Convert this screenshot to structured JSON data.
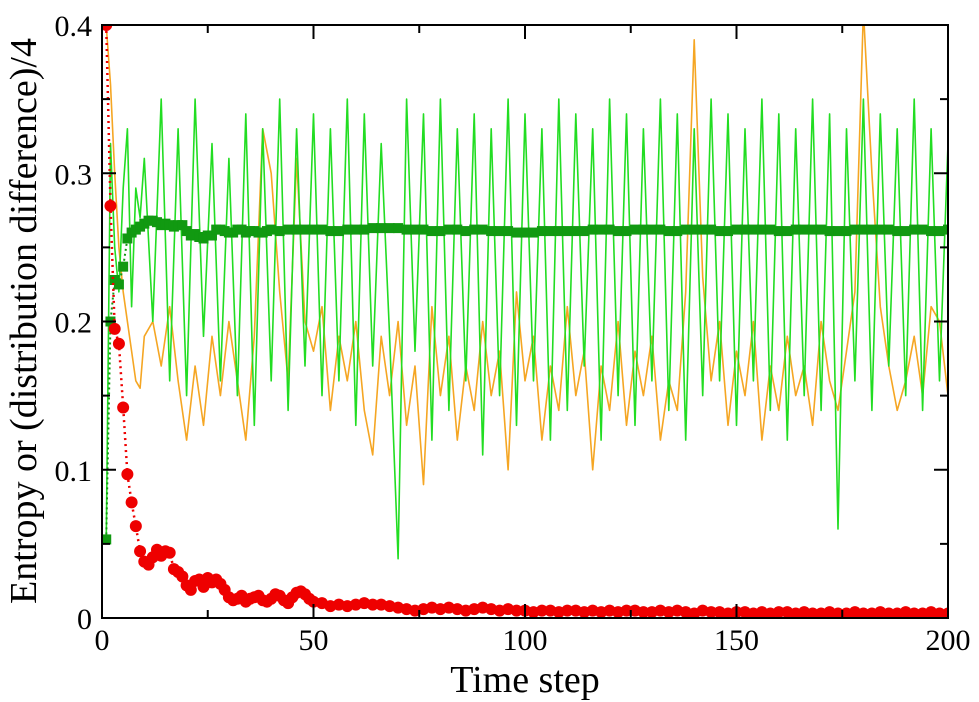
{
  "chart_data": {
    "type": "line",
    "title": "",
    "xlabel": "Time step",
    "ylabel": "Entropy or (distribution difference)/4",
    "xlim": [
      0,
      200
    ],
    "ylim": [
      0,
      0.4
    ],
    "xticks": [
      0,
      50,
      100,
      150,
      200
    ],
    "xtick_labels": [
      "0",
      "50",
      "100",
      "150",
      "200"
    ],
    "yticks": [
      0,
      0.1,
      0.2,
      0.3,
      0.4
    ],
    "ytick_labels": [
      "0",
      "0.1",
      "0.2",
      "0.3",
      "0.4"
    ],
    "grid": false,
    "legend": "none",
    "series": [
      {
        "name": "orange fluctuating line",
        "style": "line",
        "color": "#f5a623",
        "x": [
          1,
          2,
          3,
          4,
          5,
          6,
          7,
          8,
          9,
          10,
          12,
          14,
          16,
          18,
          20,
          22,
          24,
          26,
          28,
          30,
          32,
          34,
          36,
          38,
          40,
          42,
          44,
          46,
          48,
          50,
          52,
          54,
          56,
          58,
          60,
          62,
          64,
          66,
          68,
          70,
          72,
          74,
          76,
          78,
          80,
          82,
          84,
          86,
          88,
          90,
          92,
          94,
          96,
          98,
          100,
          102,
          104,
          106,
          108,
          110,
          112,
          114,
          116,
          118,
          120,
          122,
          124,
          126,
          128,
          130,
          132,
          134,
          136,
          138,
          140,
          142,
          144,
          146,
          148,
          150,
          152,
          154,
          156,
          158,
          160,
          162,
          164,
          166,
          168,
          170,
          172,
          174,
          176,
          178,
          180,
          182,
          184,
          186,
          188,
          190,
          192,
          194,
          196,
          198,
          200
        ],
        "values": [
          0.4,
          0.36,
          0.3,
          0.25,
          0.22,
          0.2,
          0.18,
          0.16,
          0.155,
          0.19,
          0.2,
          0.17,
          0.21,
          0.16,
          0.12,
          0.17,
          0.13,
          0.19,
          0.15,
          0.2,
          0.16,
          0.12,
          0.19,
          0.33,
          0.3,
          0.22,
          0.16,
          0.31,
          0.2,
          0.18,
          0.21,
          0.14,
          0.19,
          0.16,
          0.2,
          0.14,
          0.11,
          0.19,
          0.15,
          0.2,
          0.13,
          0.17,
          0.09,
          0.21,
          0.15,
          0.19,
          0.12,
          0.17,
          0.14,
          0.2,
          0.15,
          0.18,
          0.1,
          0.22,
          0.16,
          0.19,
          0.12,
          0.17,
          0.14,
          0.21,
          0.15,
          0.18,
          0.1,
          0.17,
          0.14,
          0.2,
          0.13,
          0.18,
          0.15,
          0.19,
          0.12,
          0.16,
          0.14,
          0.22,
          0.39,
          0.23,
          0.16,
          0.2,
          0.13,
          0.18,
          0.15,
          0.2,
          0.12,
          0.17,
          0.14,
          0.19,
          0.15,
          0.17,
          0.13,
          0.2,
          0.16,
          0.14,
          0.18,
          0.22,
          0.41,
          0.3,
          0.21,
          0.17,
          0.14,
          0.16,
          0.19,
          0.15,
          0.21,
          0.2,
          0.15
        ]
      },
      {
        "name": "green oscillating line",
        "style": "line",
        "color": "#22dd22",
        "x": [
          1,
          2,
          3,
          4,
          5,
          6,
          7,
          8,
          9,
          10,
          12,
          14,
          16,
          18,
          20,
          22,
          24,
          26,
          28,
          30,
          32,
          34,
          36,
          38,
          40,
          42,
          44,
          46,
          48,
          50,
          52,
          54,
          56,
          58,
          60,
          62,
          64,
          66,
          68,
          70,
          72,
          74,
          76,
          78,
          80,
          82,
          84,
          86,
          88,
          90,
          92,
          94,
          96,
          98,
          100,
          102,
          104,
          106,
          108,
          110,
          112,
          114,
          116,
          118,
          120,
          122,
          124,
          126,
          128,
          130,
          132,
          134,
          136,
          138,
          140,
          142,
          144,
          146,
          148,
          150,
          152,
          154,
          156,
          158,
          160,
          162,
          164,
          166,
          168,
          170,
          172,
          174,
          176,
          178,
          180,
          182,
          184,
          186,
          188,
          190,
          192,
          194,
          196,
          198,
          200
        ],
        "values": [
          0.05,
          0.32,
          0.25,
          0.22,
          0.29,
          0.33,
          0.21,
          0.29,
          0.27,
          0.31,
          0.2,
          0.35,
          0.16,
          0.33,
          0.15,
          0.35,
          0.19,
          0.32,
          0.16,
          0.31,
          0.15,
          0.34,
          0.13,
          0.33,
          0.16,
          0.35,
          0.14,
          0.33,
          0.17,
          0.34,
          0.15,
          0.33,
          0.16,
          0.35,
          0.13,
          0.34,
          0.17,
          0.32,
          0.19,
          0.04,
          0.35,
          0.18,
          0.34,
          0.12,
          0.35,
          0.14,
          0.33,
          0.16,
          0.34,
          0.11,
          0.33,
          0.15,
          0.35,
          0.13,
          0.34,
          0.16,
          0.33,
          0.12,
          0.35,
          0.14,
          0.34,
          0.17,
          0.33,
          0.12,
          0.35,
          0.15,
          0.34,
          0.13,
          0.33,
          0.16,
          0.35,
          0.14,
          0.34,
          0.12,
          0.33,
          0.15,
          0.35,
          0.16,
          0.34,
          0.13,
          0.33,
          0.16,
          0.35,
          0.14,
          0.34,
          0.12,
          0.33,
          0.15,
          0.35,
          0.14,
          0.34,
          0.06,
          0.33,
          0.16,
          0.35,
          0.14,
          0.34,
          0.17,
          0.33,
          0.15,
          0.35,
          0.14,
          0.33,
          0.16,
          0.32
        ]
      },
      {
        "name": "dark green squares",
        "style": "markers-square",
        "color": "#119911",
        "x": [
          1,
          2,
          3,
          4,
          5,
          6,
          7,
          8,
          9,
          10,
          11,
          12,
          13,
          14,
          15,
          16,
          17,
          18,
          19,
          20,
          21,
          22,
          23,
          24,
          25,
          26,
          27,
          28,
          29,
          30,
          31,
          32,
          33,
          34,
          35,
          36,
          37,
          38,
          39,
          40,
          42,
          44,
          46,
          48,
          50,
          52,
          54,
          56,
          58,
          60,
          62,
          64,
          66,
          68,
          70,
          72,
          74,
          76,
          78,
          80,
          82,
          84,
          86,
          88,
          90,
          92,
          94,
          96,
          98,
          100,
          102,
          104,
          106,
          108,
          110,
          112,
          114,
          116,
          118,
          120,
          122,
          124,
          126,
          128,
          130,
          132,
          134,
          136,
          138,
          140,
          142,
          144,
          146,
          148,
          150,
          152,
          154,
          156,
          158,
          160,
          162,
          164,
          166,
          168,
          170,
          172,
          174,
          176,
          178,
          180,
          182,
          184,
          186,
          188,
          190,
          192,
          194,
          196,
          198,
          200
        ],
        "values": [
          0.053,
          0.2,
          0.228,
          0.225,
          0.237,
          0.256,
          0.26,
          0.262,
          0.264,
          0.266,
          0.268,
          0.268,
          0.267,
          0.265,
          0.266,
          0.265,
          0.264,
          0.265,
          0.265,
          0.261,
          0.258,
          0.259,
          0.257,
          0.256,
          0.258,
          0.258,
          0.262,
          0.262,
          0.261,
          0.26,
          0.26,
          0.262,
          0.262,
          0.26,
          0.261,
          0.261,
          0.26,
          0.26,
          0.261,
          0.262,
          0.261,
          0.262,
          0.262,
          0.262,
          0.262,
          0.262,
          0.261,
          0.261,
          0.262,
          0.262,
          0.262,
          0.263,
          0.263,
          0.263,
          0.263,
          0.262,
          0.262,
          0.262,
          0.261,
          0.261,
          0.262,
          0.262,
          0.261,
          0.262,
          0.262,
          0.261,
          0.261,
          0.261,
          0.26,
          0.26,
          0.26,
          0.261,
          0.261,
          0.261,
          0.261,
          0.261,
          0.261,
          0.262,
          0.262,
          0.262,
          0.261,
          0.261,
          0.262,
          0.262,
          0.262,
          0.262,
          0.261,
          0.261,
          0.262,
          0.262,
          0.262,
          0.262,
          0.261,
          0.261,
          0.262,
          0.262,
          0.262,
          0.262,
          0.262,
          0.261,
          0.261,
          0.262,
          0.262,
          0.262,
          0.262,
          0.261,
          0.261,
          0.261,
          0.262,
          0.262,
          0.262,
          0.262,
          0.262,
          0.261,
          0.261,
          0.262,
          0.262,
          0.261,
          0.261,
          0.262
        ]
      },
      {
        "name": "red circles",
        "style": "markers-circle-dotted-line",
        "color": "#ee0000",
        "x": [
          1,
          2,
          3,
          4,
          5,
          6,
          7,
          8,
          9,
          10,
          11,
          12,
          13,
          14,
          15,
          16,
          17,
          18,
          19,
          20,
          21,
          22,
          23,
          24,
          25,
          26,
          27,
          28,
          29,
          30,
          31,
          32,
          33,
          34,
          35,
          36,
          37,
          38,
          39,
          40,
          41,
          42,
          43,
          44,
          45,
          46,
          47,
          48,
          49,
          50,
          52,
          54,
          56,
          58,
          60,
          62,
          64,
          66,
          68,
          70,
          72,
          74,
          76,
          78,
          80,
          82,
          84,
          86,
          88,
          90,
          92,
          94,
          96,
          98,
          100,
          102,
          104,
          106,
          108,
          110,
          112,
          114,
          116,
          118,
          120,
          122,
          124,
          126,
          128,
          130,
          132,
          134,
          136,
          138,
          140,
          142,
          144,
          146,
          148,
          150,
          152,
          154,
          156,
          158,
          160,
          162,
          164,
          166,
          168,
          170,
          172,
          174,
          176,
          178,
          180,
          182,
          184,
          186,
          188,
          190,
          192,
          194,
          196,
          198,
          200
        ],
        "values": [
          0.4,
          0.278,
          0.195,
          0.185,
          0.142,
          0.097,
          0.078,
          0.062,
          0.045,
          0.038,
          0.036,
          0.041,
          0.046,
          0.042,
          0.045,
          0.044,
          0.033,
          0.031,
          0.028,
          0.022,
          0.019,
          0.025,
          0.026,
          0.021,
          0.027,
          0.024,
          0.026,
          0.023,
          0.019,
          0.014,
          0.012,
          0.013,
          0.015,
          0.011,
          0.013,
          0.014,
          0.015,
          0.012,
          0.011,
          0.013,
          0.016,
          0.015,
          0.012,
          0.01,
          0.014,
          0.017,
          0.018,
          0.016,
          0.013,
          0.011,
          0.01,
          0.008,
          0.009,
          0.008,
          0.009,
          0.01,
          0.009,
          0.009,
          0.008,
          0.007,
          0.006,
          0.005,
          0.006,
          0.007,
          0.006,
          0.007,
          0.006,
          0.005,
          0.006,
          0.007,
          0.006,
          0.005,
          0.006,
          0.005,
          0.005,
          0.004,
          0.005,
          0.005,
          0.004,
          0.005,
          0.005,
          0.004,
          0.005,
          0.004,
          0.005,
          0.004,
          0.005,
          0.005,
          0.004,
          0.004,
          0.005,
          0.004,
          0.005,
          0.004,
          0.003,
          0.005,
          0.004,
          0.004,
          0.003,
          0.004,
          0.004,
          0.003,
          0.004,
          0.003,
          0.004,
          0.004,
          0.003,
          0.004,
          0.003,
          0.003,
          0.004,
          0.003,
          0.003,
          0.004,
          0.003,
          0.003,
          0.004,
          0.003,
          0.003,
          0.004,
          0.003,
          0.003,
          0.004,
          0.003,
          0.003
        ]
      }
    ]
  }
}
